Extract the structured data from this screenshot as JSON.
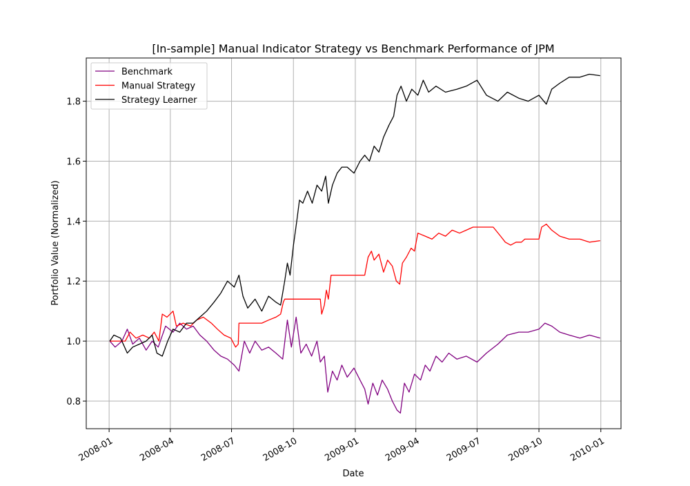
{
  "chart_data": {
    "type": "line",
    "title": "[In-sample] Manual Indicator Strategy vs Benchmark Performance of JPM",
    "xlabel": "Date",
    "ylabel": "Portfolio Value (Normalized)",
    "x_ticks": [
      "2008-01",
      "2008-04",
      "2008-07",
      "2008-10",
      "2009-01",
      "2009-04",
      "2009-07",
      "2009-10",
      "2010-01"
    ],
    "y_ticks": [
      0.8,
      1.0,
      1.2,
      1.4,
      1.6,
      1.8
    ],
    "xlim": [
      "2007-11-28",
      "2010-01-31"
    ],
    "ylim": [
      0.708,
      1.944
    ],
    "grid": true,
    "legend_position": "top-left",
    "series": [
      {
        "name": "Benchmark",
        "color": "#800080",
        "points": [
          [
            "2008-01-02",
            1.0
          ],
          [
            "2008-01-10",
            0.98
          ],
          [
            "2008-01-20",
            1.0
          ],
          [
            "2008-01-28",
            1.04
          ],
          [
            "2008-02-05",
            0.99
          ],
          [
            "2008-02-15",
            1.01
          ],
          [
            "2008-02-25",
            0.97
          ],
          [
            "2008-03-05",
            1.0
          ],
          [
            "2008-03-14",
            0.98
          ],
          [
            "2008-03-25",
            1.05
          ],
          [
            "2008-04-05",
            1.03
          ],
          [
            "2008-04-15",
            1.06
          ],
          [
            "2008-04-25",
            1.04
          ],
          [
            "2008-05-05",
            1.05
          ],
          [
            "2008-05-15",
            1.02
          ],
          [
            "2008-05-25",
            1.0
          ],
          [
            "2008-06-05",
            0.97
          ],
          [
            "2008-06-15",
            0.95
          ],
          [
            "2008-06-25",
            0.94
          ],
          [
            "2008-07-05",
            0.92
          ],
          [
            "2008-07-12",
            0.9
          ],
          [
            "2008-07-20",
            1.0
          ],
          [
            "2008-07-28",
            0.96
          ],
          [
            "2008-08-05",
            1.0
          ],
          [
            "2008-08-15",
            0.97
          ],
          [
            "2008-08-25",
            0.98
          ],
          [
            "2008-09-05",
            0.96
          ],
          [
            "2008-09-15",
            0.94
          ],
          [
            "2008-09-22",
            1.07
          ],
          [
            "2008-09-28",
            0.98
          ],
          [
            "2008-10-05",
            1.08
          ],
          [
            "2008-10-12",
            0.96
          ],
          [
            "2008-10-20",
            0.99
          ],
          [
            "2008-10-28",
            0.95
          ],
          [
            "2008-11-05",
            1.0
          ],
          [
            "2008-11-10",
            0.93
          ],
          [
            "2008-11-16",
            0.95
          ],
          [
            "2008-11-21",
            0.83
          ],
          [
            "2008-11-28",
            0.9
          ],
          [
            "2008-12-05",
            0.87
          ],
          [
            "2008-12-12",
            0.92
          ],
          [
            "2008-12-20",
            0.88
          ],
          [
            "2008-12-30",
            0.91
          ],
          [
            "2009-01-08",
            0.87
          ],
          [
            "2009-01-15",
            0.84
          ],
          [
            "2009-01-20",
            0.79
          ],
          [
            "2009-01-27",
            0.86
          ],
          [
            "2009-02-03",
            0.82
          ],
          [
            "2009-02-10",
            0.87
          ],
          [
            "2009-02-18",
            0.84
          ],
          [
            "2009-02-25",
            0.8
          ],
          [
            "2009-03-04",
            0.77
          ],
          [
            "2009-03-09",
            0.76
          ],
          [
            "2009-03-15",
            0.86
          ],
          [
            "2009-03-22",
            0.83
          ],
          [
            "2009-03-30",
            0.89
          ],
          [
            "2009-04-08",
            0.87
          ],
          [
            "2009-04-15",
            0.92
          ],
          [
            "2009-04-22",
            0.9
          ],
          [
            "2009-05-01",
            0.95
          ],
          [
            "2009-05-10",
            0.93
          ],
          [
            "2009-05-20",
            0.96
          ],
          [
            "2009-06-01",
            0.94
          ],
          [
            "2009-06-15",
            0.95
          ],
          [
            "2009-07-01",
            0.93
          ],
          [
            "2009-07-15",
            0.96
          ],
          [
            "2009-08-01",
            0.99
          ],
          [
            "2009-08-15",
            1.02
          ],
          [
            "2009-09-01",
            1.03
          ],
          [
            "2009-09-15",
            1.03
          ],
          [
            "2009-10-01",
            1.04
          ],
          [
            "2009-10-10",
            1.06
          ],
          [
            "2009-10-20",
            1.05
          ],
          [
            "2009-11-01",
            1.03
          ],
          [
            "2009-11-15",
            1.02
          ],
          [
            "2009-12-01",
            1.01
          ],
          [
            "2009-12-15",
            1.02
          ],
          [
            "2009-12-31",
            1.01
          ]
        ]
      },
      {
        "name": "Manual Strategy",
        "color": "#ff0000",
        "points": [
          [
            "2008-01-02",
            1.0
          ],
          [
            "2008-01-25",
            1.0
          ],
          [
            "2008-02-01",
            1.03
          ],
          [
            "2008-02-10",
            1.01
          ],
          [
            "2008-02-20",
            1.02
          ],
          [
            "2008-03-01",
            1.01
          ],
          [
            "2008-03-08",
            1.03
          ],
          [
            "2008-03-15",
            1.0
          ],
          [
            "2008-03-20",
            1.09
          ],
          [
            "2008-03-27",
            1.08
          ],
          [
            "2008-04-05",
            1.1
          ],
          [
            "2008-04-10",
            1.05
          ],
          [
            "2008-04-20",
            1.06
          ],
          [
            "2008-05-01",
            1.05
          ],
          [
            "2008-05-10",
            1.07
          ],
          [
            "2008-05-20",
            1.08
          ],
          [
            "2008-06-01",
            1.06
          ],
          [
            "2008-06-10",
            1.04
          ],
          [
            "2008-06-20",
            1.02
          ],
          [
            "2008-06-30",
            1.01
          ],
          [
            "2008-07-07",
            0.98
          ],
          [
            "2008-07-11",
            0.99
          ],
          [
            "2008-07-12",
            1.06
          ],
          [
            "2008-08-15",
            1.06
          ],
          [
            "2008-08-25",
            1.07
          ],
          [
            "2008-09-05",
            1.08
          ],
          [
            "2008-09-12",
            1.09
          ],
          [
            "2008-09-16",
            1.13
          ],
          [
            "2008-09-18",
            1.14
          ],
          [
            "2008-11-10",
            1.14
          ],
          [
            "2008-11-12",
            1.09
          ],
          [
            "2008-11-16",
            1.12
          ],
          [
            "2008-11-19",
            1.17
          ],
          [
            "2008-11-22",
            1.14
          ],
          [
            "2008-11-26",
            1.22
          ],
          [
            "2009-01-15",
            1.22
          ],
          [
            "2009-01-20",
            1.28
          ],
          [
            "2009-01-25",
            1.3
          ],
          [
            "2009-01-29",
            1.27
          ],
          [
            "2009-02-05",
            1.29
          ],
          [
            "2009-02-12",
            1.23
          ],
          [
            "2009-02-18",
            1.27
          ],
          [
            "2009-02-25",
            1.25
          ],
          [
            "2009-03-03",
            1.2
          ],
          [
            "2009-03-08",
            1.19
          ],
          [
            "2009-03-12",
            1.26
          ],
          [
            "2009-03-18",
            1.28
          ],
          [
            "2009-03-25",
            1.31
          ],
          [
            "2009-03-30",
            1.3
          ],
          [
            "2009-04-04",
            1.36
          ],
          [
            "2009-04-15",
            1.35
          ],
          [
            "2009-04-25",
            1.34
          ],
          [
            "2009-05-05",
            1.36
          ],
          [
            "2009-05-15",
            1.35
          ],
          [
            "2009-05-25",
            1.37
          ],
          [
            "2009-06-05",
            1.36
          ],
          [
            "2009-06-15",
            1.37
          ],
          [
            "2009-06-25",
            1.38
          ],
          [
            "2009-07-25",
            1.38
          ],
          [
            "2009-08-05",
            1.35
          ],
          [
            "2009-08-12",
            1.33
          ],
          [
            "2009-08-20",
            1.32
          ],
          [
            "2009-08-28",
            1.33
          ],
          [
            "2009-09-05",
            1.33
          ],
          [
            "2009-09-10",
            1.34
          ],
          [
            "2009-10-01",
            1.34
          ],
          [
            "2009-10-05",
            1.38
          ],
          [
            "2009-10-12",
            1.39
          ],
          [
            "2009-10-20",
            1.37
          ],
          [
            "2009-11-01",
            1.35
          ],
          [
            "2009-11-15",
            1.34
          ],
          [
            "2009-12-01",
            1.34
          ],
          [
            "2009-12-15",
            1.33
          ],
          [
            "2009-12-31",
            1.335
          ]
        ]
      },
      {
        "name": "Strategy Learner",
        "color": "#000000",
        "points": [
          [
            "2008-01-02",
            1.0
          ],
          [
            "2008-01-08",
            1.02
          ],
          [
            "2008-01-18",
            1.01
          ],
          [
            "2008-01-28",
            0.96
          ],
          [
            "2008-02-05",
            0.98
          ],
          [
            "2008-02-15",
            0.99
          ],
          [
            "2008-02-25",
            1.0
          ],
          [
            "2008-03-05",
            1.02
          ],
          [
            "2008-03-12",
            0.96
          ],
          [
            "2008-03-20",
            0.95
          ],
          [
            "2008-03-28",
            1.0
          ],
          [
            "2008-04-05",
            1.04
          ],
          [
            "2008-04-15",
            1.03
          ],
          [
            "2008-04-25",
            1.06
          ],
          [
            "2008-05-05",
            1.06
          ],
          [
            "2008-05-15",
            1.08
          ],
          [
            "2008-05-25",
            1.1
          ],
          [
            "2008-06-05",
            1.13
          ],
          [
            "2008-06-15",
            1.16
          ],
          [
            "2008-06-25",
            1.2
          ],
          [
            "2008-07-05",
            1.18
          ],
          [
            "2008-07-12",
            1.22
          ],
          [
            "2008-07-18",
            1.15
          ],
          [
            "2008-07-25",
            1.11
          ],
          [
            "2008-08-05",
            1.14
          ],
          [
            "2008-08-15",
            1.1
          ],
          [
            "2008-08-25",
            1.15
          ],
          [
            "2008-09-05",
            1.13
          ],
          [
            "2008-09-12",
            1.12
          ],
          [
            "2008-09-18",
            1.2
          ],
          [
            "2008-09-22",
            1.26
          ],
          [
            "2008-09-26",
            1.22
          ],
          [
            "2008-10-01",
            1.32
          ],
          [
            "2008-10-06",
            1.4
          ],
          [
            "2008-10-10",
            1.47
          ],
          [
            "2008-10-15",
            1.46
          ],
          [
            "2008-10-22",
            1.5
          ],
          [
            "2008-10-29",
            1.46
          ],
          [
            "2008-11-05",
            1.52
          ],
          [
            "2008-11-12",
            1.5
          ],
          [
            "2008-11-18",
            1.55
          ],
          [
            "2008-11-22",
            1.46
          ],
          [
            "2008-11-28",
            1.52
          ],
          [
            "2008-12-05",
            1.56
          ],
          [
            "2008-12-12",
            1.58
          ],
          [
            "2008-12-20",
            1.58
          ],
          [
            "2008-12-30",
            1.56
          ],
          [
            "2009-01-08",
            1.6
          ],
          [
            "2009-01-15",
            1.62
          ],
          [
            "2009-01-22",
            1.6
          ],
          [
            "2009-01-29",
            1.65
          ],
          [
            "2009-02-05",
            1.63
          ],
          [
            "2009-02-12",
            1.68
          ],
          [
            "2009-02-20",
            1.72
          ],
          [
            "2009-02-27",
            1.75
          ],
          [
            "2009-03-04",
            1.82
          ],
          [
            "2009-03-10",
            1.85
          ],
          [
            "2009-03-18",
            1.8
          ],
          [
            "2009-03-26",
            1.84
          ],
          [
            "2009-04-04",
            1.82
          ],
          [
            "2009-04-12",
            1.87
          ],
          [
            "2009-04-20",
            1.83
          ],
          [
            "2009-05-01",
            1.85
          ],
          [
            "2009-05-15",
            1.83
          ],
          [
            "2009-06-01",
            1.84
          ],
          [
            "2009-06-15",
            1.85
          ],
          [
            "2009-07-01",
            1.87
          ],
          [
            "2009-07-15",
            1.82
          ],
          [
            "2009-08-01",
            1.8
          ],
          [
            "2009-08-15",
            1.83
          ],
          [
            "2009-09-01",
            1.81
          ],
          [
            "2009-09-15",
            1.8
          ],
          [
            "2009-10-01",
            1.82
          ],
          [
            "2009-10-12",
            1.79
          ],
          [
            "2009-10-20",
            1.84
          ],
          [
            "2009-11-01",
            1.86
          ],
          [
            "2009-11-15",
            1.88
          ],
          [
            "2009-12-01",
            1.88
          ],
          [
            "2009-12-15",
            1.89
          ],
          [
            "2009-12-31",
            1.885
          ]
        ]
      }
    ]
  }
}
